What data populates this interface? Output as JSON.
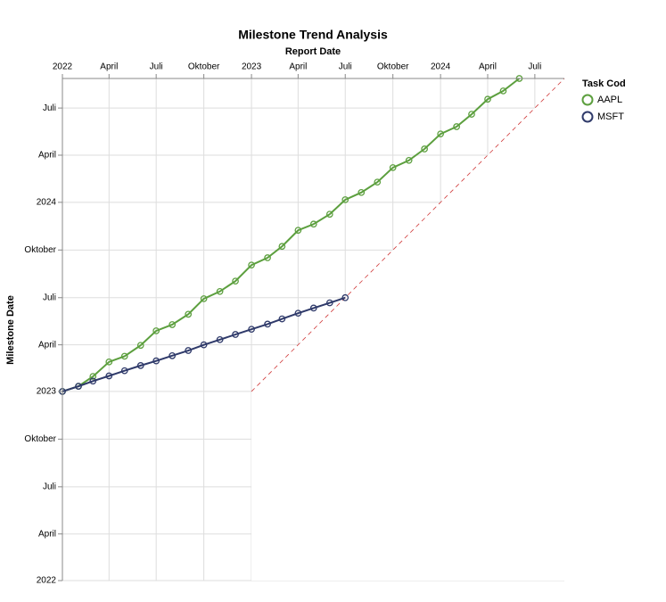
{
  "chart_data": {
    "type": "line",
    "title": "Milestone Trend Analysis",
    "x_label": "Report Date",
    "y_label": "Milestone Date",
    "legend_title": "Task Cod",
    "legend_position": "right",
    "grid": true,
    "reference_line": {
      "start": "2023-01-01",
      "color": "#d03a3a",
      "dashed": true
    },
    "x": [
      "2022-01",
      "2022-02",
      "2022-03",
      "2022-04",
      "2022-05",
      "2022-06",
      "2022-07",
      "2022-08",
      "2022-09",
      "2022-10",
      "2022-11",
      "2022-12",
      "2023-01",
      "2023-02",
      "2023-03",
      "2023-04",
      "2023-05",
      "2023-06",
      "2023-07",
      "2023-08",
      "2023-09",
      "2023-10",
      "2023-11",
      "2023-12",
      "2024-01",
      "2024-02",
      "2024-03",
      "2024-04",
      "2024-05",
      "2024-06"
    ],
    "series": [
      {
        "name": "AAPL",
        "color": "#5c9f3e",
        "values": [
          "2023-01-01",
          "2023-01-11",
          "2023-01-30",
          "2023-02-27",
          "2023-03-10",
          "2023-03-31",
          "2023-04-28",
          "2023-05-10",
          "2023-05-30",
          "2023-06-29",
          "2023-07-13",
          "2023-08-02",
          "2023-09-02",
          "2023-09-16",
          "2023-10-08",
          "2023-11-08",
          "2023-11-20",
          "2023-12-09",
          "2024-01-06",
          "2024-01-20",
          "2024-02-09",
          "2024-03-08",
          "2024-03-22",
          "2024-04-13",
          "2024-05-12",
          "2024-05-26",
          "2024-06-19",
          "2024-07-18",
          "2024-08-03",
          "2024-08-27"
        ]
      },
      {
        "name": "MSFT",
        "color": "#2f3a6a",
        "values": [
          "2023-01-01",
          "2023-01-11",
          "2023-01-21",
          "2023-01-31",
          "2023-02-10",
          "2023-02-20",
          "2023-03-01",
          "2023-03-11",
          "2023-03-21",
          "2023-04-01",
          "2023-04-11",
          "2023-04-21",
          "2023-05-01",
          "2023-05-11",
          "2023-05-21",
          "2023-06-01",
          "2023-06-11",
          "2023-06-21",
          "2023-07-01",
          null,
          null,
          null,
          null,
          null,
          null,
          null,
          null,
          null,
          null,
          null
        ]
      }
    ],
    "xlim": [
      "2022-01-01",
      "2024-08-27"
    ],
    "ylim": [
      "2022-01-01",
      "2024-08-27"
    ],
    "xticks": [
      {
        "value": "2022-01-01",
        "label": "2022"
      },
      {
        "value": "2022-04-01",
        "label": "April"
      },
      {
        "value": "2022-07-01",
        "label": "Juli"
      },
      {
        "value": "2022-10-01",
        "label": "Oktober"
      },
      {
        "value": "2023-01-01",
        "label": "2023"
      },
      {
        "value": "2023-04-01",
        "label": "April"
      },
      {
        "value": "2023-07-01",
        "label": "Juli"
      },
      {
        "value": "2023-10-01",
        "label": "Oktober"
      },
      {
        "value": "2024-01-01",
        "label": "2024"
      },
      {
        "value": "2024-04-01",
        "label": "April"
      },
      {
        "value": "2024-07-01",
        "label": "Juli"
      }
    ],
    "yticks": [
      {
        "value": "2022-01-01",
        "label": "2022"
      },
      {
        "value": "2022-04-01",
        "label": "April"
      },
      {
        "value": "2022-07-01",
        "label": "Juli"
      },
      {
        "value": "2022-10-01",
        "label": "Oktober"
      },
      {
        "value": "2023-01-01",
        "label": "2023"
      },
      {
        "value": "2023-04-01",
        "label": "April"
      },
      {
        "value": "2023-07-01",
        "label": "Juli"
      },
      {
        "value": "2023-10-01",
        "label": "Oktober"
      },
      {
        "value": "2024-01-01",
        "label": "2024"
      },
      {
        "value": "2024-04-01",
        "label": "April"
      },
      {
        "value": "2024-07-01",
        "label": "Juli"
      }
    ]
  }
}
